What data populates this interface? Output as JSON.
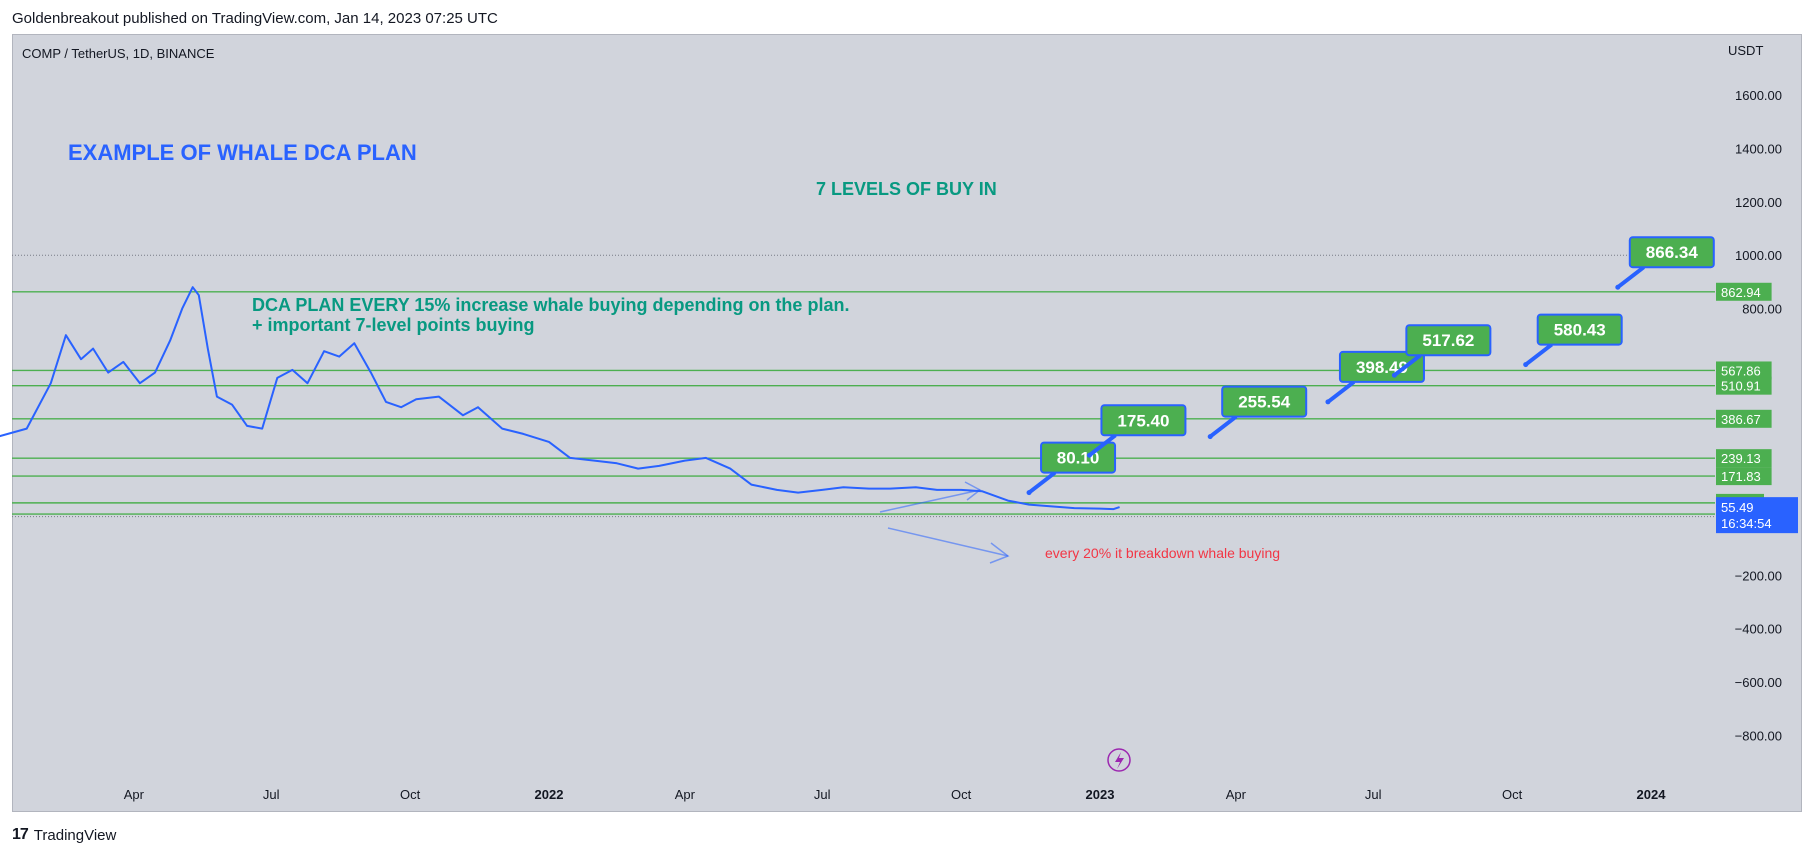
{
  "header": {
    "published": "Goldenbreakout published on TradingView.com, Jan 14, 2023 07:25 UTC"
  },
  "symbol": "COMP / TetherUS, 1D, BINANCE",
  "currency": "USDT",
  "footer": {
    "brand": "TradingView",
    "logo_glyph": "17"
  },
  "colors": {
    "price_line": "#2962ff",
    "level_line": "#4caf50",
    "label_green": "#4caf50",
    "label_border": "#2962ff",
    "text_blue": "#2962ff",
    "text_teal": "#089981",
    "text_red": "#f23645",
    "background": "#d1d4dc"
  },
  "annotations": {
    "title": "EXAMPLE OF WHALE DCA PLAN",
    "levels_text": "7 LEVELS OF BUY IN",
    "dca_line1": "DCA PLAN EVERY 15% increase whale buying depending on the plan.",
    "dca_line2": "+ important 7-level points buying",
    "breakdown": "every 20% it breakdown whale buying"
  },
  "chart_data": {
    "type": "line",
    "title": "",
    "xlabel": "",
    "ylabel": "USDT",
    "ylim": [
      -900,
      1700
    ],
    "y_ticks": [
      1600,
      1400,
      1200,
      1000,
      800,
      -200,
      -400,
      -600,
      -800
    ],
    "y_tick_labels": [
      "1600.00",
      "1400.00",
      "1200.00",
      "1000.00",
      "800.00",
      "−200.00",
      "−400.00",
      "−600.00",
      "−800.00"
    ],
    "x_ticks": [
      {
        "label": "Apr",
        "date": "2021-04-01",
        "bold": false
      },
      {
        "label": "Jul",
        "date": "2021-07-01",
        "bold": false
      },
      {
        "label": "Oct",
        "date": "2021-10-01",
        "bold": false
      },
      {
        "label": "2022",
        "date": "2022-01-01",
        "bold": true
      },
      {
        "label": "Apr",
        "date": "2022-04-01",
        "bold": false
      },
      {
        "label": "Jul",
        "date": "2022-07-01",
        "bold": false
      },
      {
        "label": "Oct",
        "date": "2022-10-01",
        "bold": false
      },
      {
        "label": "2023",
        "date": "2023-01-01",
        "bold": true
      },
      {
        "label": "Apr",
        "date": "2023-04-01",
        "bold": false
      },
      {
        "label": "Jul",
        "date": "2023-07-01",
        "bold": false
      },
      {
        "label": "Oct",
        "date": "2023-10-01",
        "bold": false
      },
      {
        "label": "2024",
        "date": "2024-01-01",
        "bold": true
      }
    ],
    "series": [
      {
        "x": [
          "2021-01-01",
          "2021-01-20",
          "2021-02-05",
          "2021-02-15",
          "2021-02-25",
          "2021-03-05",
          "2021-03-15",
          "2021-03-25",
          "2021-04-05",
          "2021-04-15",
          "2021-04-25",
          "2021-05-03",
          "2021-05-10",
          "2021-05-14",
          "2021-05-20",
          "2021-05-26",
          "2021-06-05",
          "2021-06-15",
          "2021-06-25",
          "2021-07-05",
          "2021-07-15",
          "2021-07-25",
          "2021-08-05",
          "2021-08-15",
          "2021-08-25",
          "2021-09-05",
          "2021-09-15",
          "2021-09-25",
          "2021-10-05",
          "2021-10-20",
          "2021-11-05",
          "2021-11-15",
          "2021-12-01",
          "2021-12-15",
          "2022-01-01",
          "2022-01-15",
          "2022-01-31",
          "2022-02-15",
          "2022-03-01",
          "2022-03-15",
          "2022-04-01",
          "2022-04-15",
          "2022-05-01",
          "2022-05-15",
          "2022-06-01",
          "2022-06-15",
          "2022-07-01",
          "2022-07-15",
          "2022-08-01",
          "2022-08-15",
          "2022-09-01",
          "2022-09-15",
          "2022-10-01",
          "2022-10-15",
          "2022-11-01",
          "2022-11-15",
          "2022-12-01",
          "2022-12-15",
          "2023-01-01",
          "2023-01-10",
          "2023-01-14"
        ],
        "values": [
          320,
          350,
          520,
          700,
          610,
          650,
          560,
          600,
          520,
          560,
          680,
          800,
          880,
          850,
          650,
          470,
          440,
          360,
          350,
          540,
          570,
          520,
          640,
          620,
          670,
          560,
          450,
          430,
          460,
          470,
          400,
          430,
          350,
          330,
          300,
          240,
          230,
          220,
          200,
          210,
          230,
          240,
          200,
          140,
          120,
          110,
          120,
          130,
          125,
          125,
          130,
          120,
          120,
          115,
          80,
          65,
          58,
          52,
          50,
          48,
          55.49
        ]
      }
    ],
    "levels": [
      862.94,
      567.86,
      510.91,
      386.67,
      239.13,
      171.83,
      71.44,
      29.47
    ],
    "level_labels": [
      "862.94",
      "567.86",
      "510.91",
      "386.67",
      "239.13",
      "171.83",
      "71.44",
      "29.47"
    ],
    "last_price": "55.49",
    "countdown": "16:34:54",
    "callouts": [
      {
        "label": "80.10",
        "date": "2022-11-15",
        "value": 110
      },
      {
        "label": "175.40",
        "date": "2022-12-25",
        "value": 250
      },
      {
        "label": "255.54",
        "date": "2023-03-15",
        "value": 320
      },
      {
        "label": "398.49",
        "date": "2023-06-01",
        "value": 450
      },
      {
        "label": "517.62",
        "date": "2023-07-15",
        "value": 550
      },
      {
        "label": "580.43",
        "date": "2023-10-10",
        "value": 590
      },
      {
        "label": "866.34",
        "date": "2023-12-10",
        "value": 880
      }
    ]
  }
}
